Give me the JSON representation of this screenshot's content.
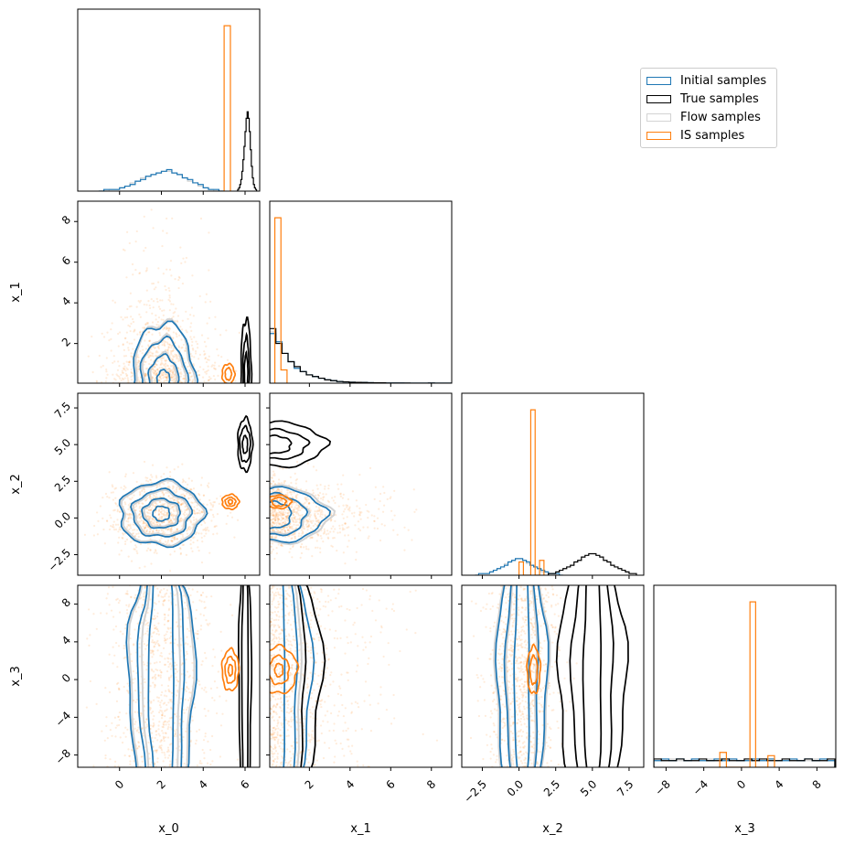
{
  "chart_data": {
    "type": "corner",
    "variables": [
      "x_0",
      "x_1",
      "x_2",
      "x_3"
    ],
    "ranges": {
      "x_0": [
        -2.0,
        6.7
      ],
      "x_1": [
        0.05,
        9.0
      ],
      "x_2": [
        -3.9,
        8.5
      ],
      "x_3": [
        -9.3,
        10.0
      ]
    },
    "ticks": {
      "x_0": {
        "values": [
          0,
          2,
          4,
          6
        ],
        "labels": [
          "0",
          "2",
          "4",
          "6"
        ]
      },
      "x_1": {
        "values": [
          2,
          4,
          6,
          8
        ],
        "labels": [
          "2",
          "4",
          "6",
          "8"
        ]
      },
      "x_2": {
        "values": [
          -2.5,
          0,
          2.5,
          5,
          7.5
        ],
        "labels": [
          "−2.5",
          "0.0",
          "2.5",
          "5.0",
          "7.5"
        ]
      },
      "x_3": {
        "values": [
          -8,
          -4,
          0,
          4,
          8
        ],
        "labels": [
          "−8",
          "−4",
          "0",
          "4",
          "8"
        ]
      }
    },
    "series": [
      {
        "name": "Initial samples",
        "key": "initial",
        "color": "#1f77b4"
      },
      {
        "name": "True samples",
        "key": "true",
        "color": "#000000"
      },
      {
        "name": "Flow samples",
        "key": "flow",
        "color": "#d3d3d3"
      },
      {
        "name": "IS samples",
        "key": "is",
        "color": "#ff7f0e"
      }
    ],
    "legend_placement": "upper-right",
    "histograms": {
      "x_0": {
        "ylim": [
          0,
          1.1
        ],
        "initial": {
          "start": -1,
          "width": 0.25,
          "counts": [
            0.0,
            0.01,
            0.01,
            0.01,
            0.02,
            0.03,
            0.04,
            0.06,
            0.07,
            0.09,
            0.1,
            0.11,
            0.12,
            0.13,
            0.11,
            0.1,
            0.08,
            0.07,
            0.05,
            0.04,
            0.02,
            0.01,
            0.01,
            0.0
          ]
        },
        "flow": {
          "start": -1,
          "width": 0.25,
          "counts": [
            0.0,
            0.0,
            0.01,
            0.01,
            0.02,
            0.03,
            0.05,
            0.06,
            0.08,
            0.09,
            0.1,
            0.11,
            0.12,
            0.12,
            0.11,
            0.1,
            0.08,
            0.06,
            0.05,
            0.03,
            0.02,
            0.01,
            0.0,
            0.0
          ]
        },
        "true": {
          "start": 5.6,
          "width": 0.05,
          "counts": [
            0,
            0.01,
            0.02,
            0.04,
            0.07,
            0.12,
            0.19,
            0.27,
            0.36,
            0.44,
            0.48,
            0.44,
            0.36,
            0.25,
            0.15,
            0.08,
            0.04,
            0.02,
            0.01,
            0
          ]
        },
        "is": {
          "edges": [
            5.0,
            5.3
          ],
          "counts": [
            1.0
          ]
        }
      },
      "x_1": {
        "ylim": [
          0,
          1.1
        ],
        "initial": {
          "start": 0.05,
          "width": 0.3,
          "counts": [
            0.3,
            0.25,
            0.18,
            0.13,
            0.09,
            0.07,
            0.05,
            0.04,
            0.03,
            0.02,
            0.015,
            0.01,
            0.008,
            0.006,
            0.005,
            0.004,
            0.003,
            0.002,
            0.002,
            0.001,
            0.001,
            0.001,
            0.0,
            0.0,
            0.0,
            0.0,
            0.001,
            0,
            0,
            0
          ]
        },
        "flow": {
          "start": 0.05,
          "width": 0.3,
          "counts": [
            0.31,
            0.24,
            0.18,
            0.13,
            0.1,
            0.07,
            0.05,
            0.04,
            0.03,
            0.02,
            0.015,
            0.01,
            0.008,
            0.006,
            0.005,
            0.004,
            0.003,
            0.002,
            0.002,
            0.001,
            0.001,
            0.0,
            0.0,
            0.0,
            0.0,
            0.0,
            0.0,
            0,
            0,
            0
          ]
        },
        "true": {
          "start": 0.05,
          "width": 0.3,
          "counts": [
            0.33,
            0.24,
            0.18,
            0.13,
            0.1,
            0.07,
            0.05,
            0.04,
            0.03,
            0.02,
            0.015,
            0.01,
            0.008,
            0.006,
            0.005,
            0.004,
            0.003,
            0.002,
            0.002,
            0.001,
            0.001,
            0.001,
            0.001,
            0.0,
            0.0,
            0.0,
            0.001,
            0,
            0,
            0
          ]
        },
        "is": {
          "edges": [
            0.3,
            0.6,
            0.9
          ],
          "counts": [
            1.0,
            0.08
          ]
        }
      },
      "x_2": {
        "ylim": [
          0,
          1.1
        ],
        "initial": {
          "start": -3,
          "width": 0.25,
          "counts": [
            0.0,
            0.01,
            0.01,
            0.01,
            0.02,
            0.03,
            0.04,
            0.05,
            0.06,
            0.08,
            0.09,
            0.1,
            0.1,
            0.09,
            0.08,
            0.06,
            0.05,
            0.04,
            0.03,
            0.02,
            0.01,
            0.01,
            0.01,
            0.0
          ]
        },
        "flow": {
          "start": -3,
          "width": 0.25,
          "counts": [
            0.0,
            0.0,
            0.01,
            0.01,
            0.02,
            0.03,
            0.04,
            0.05,
            0.07,
            0.08,
            0.09,
            0.1,
            0.1,
            0.09,
            0.07,
            0.06,
            0.05,
            0.04,
            0.02,
            0.02,
            0.01,
            0.01,
            0.0,
            0.0
          ]
        },
        "true": {
          "start": 2,
          "width": 0.25,
          "counts": [
            0.01,
            0.01,
            0.02,
            0.03,
            0.04,
            0.05,
            0.06,
            0.08,
            0.09,
            0.11,
            0.12,
            0.13,
            0.13,
            0.12,
            0.11,
            0.09,
            0.08,
            0.06,
            0.05,
            0.04,
            0.03,
            0.02,
            0.01,
            0.01
          ]
        },
        "is": {
          "edges": [
            0.0,
            0.3,
            0.8,
            1.1,
            1.4,
            1.7
          ],
          "counts": [
            0.08,
            0,
            1.0,
            0,
            0.09
          ]
        }
      },
      "x_3": {
        "ylim": [
          0,
          1.1
        ],
        "initial": {
          "start": -9.3,
          "width": 0.8,
          "counts": [
            0.04,
            0.05,
            0.04,
            0.05,
            0.04,
            0.05,
            0.04,
            0.04,
            0.05,
            0.04,
            0.05,
            0.04,
            0.04,
            0.05,
            0.04,
            0.05,
            0.04,
            0.04,
            0.05,
            0.04,
            0.05,
            0.04,
            0.05,
            0.04
          ]
        },
        "flow": {
          "start": -9.3,
          "width": 0.8,
          "counts": [
            0.04,
            0.04,
            0.05,
            0.04,
            0.04,
            0.05,
            0.04,
            0.05,
            0.04,
            0.04,
            0.05,
            0.04,
            0.05,
            0.04,
            0.04,
            0.05,
            0.04,
            0.05,
            0.04,
            0.04,
            0.04,
            0.05,
            0.04,
            0.04
          ]
        },
        "true": {
          "start": -9.3,
          "width": 0.8,
          "counts": [
            0.05,
            0.04,
            0.04,
            0.05,
            0.04,
            0.04,
            0.05,
            0.04,
            0.04,
            0.05,
            0.04,
            0.04,
            0.05,
            0.04,
            0.05,
            0.04,
            0.04,
            0.05,
            0.04,
            0.04,
            0.05,
            0.04,
            0.04,
            0.05
          ]
        },
        "is": {
          "edges": [
            -2.3,
            -1.6,
            0.9,
            1.5,
            2.8,
            3.5
          ],
          "counts": [
            0.09,
            0,
            1.0,
            0,
            0.07
          ]
        }
      }
    },
    "contours": [
      {
        "x": "x_0",
        "y": "x_1",
        "initial": {
          "center": [
            2.1,
            0.2
          ],
          "radii": [
            [
              1.5,
              2.8
            ],
            [
              1.1,
              2.0
            ],
            [
              0.7,
              1.2
            ],
            [
              0.3,
              0.5
            ]
          ]
        },
        "flow": {
          "center": [
            2.1,
            0.2
          ],
          "radii": [
            [
              1.4,
              2.9
            ],
            [
              1.0,
              2.1
            ],
            [
              0.6,
              1.3
            ]
          ]
        },
        "true": {
          "center": [
            6.05,
            0.5
          ],
          "radii": [
            [
              0.25,
              2.7
            ],
            [
              0.15,
              1.8
            ],
            [
              0.08,
              1.0
            ]
          ]
        },
        "is": {
          "center": [
            5.2,
            0.5
          ],
          "radii": [
            [
              0.3,
              0.5
            ],
            [
              0.15,
              0.3
            ]
          ]
        }
      },
      {
        "x": "x_0",
        "y": "x_2",
        "initial": {
          "center": [
            2.0,
            0.3
          ],
          "radii": [
            [
              2.0,
              2.2
            ],
            [
              1.4,
              1.6
            ],
            [
              0.9,
              1.0
            ],
            [
              0.4,
              0.5
            ]
          ]
        },
        "flow": {
          "center": [
            2.0,
            0.3
          ],
          "radii": [
            [
              1.9,
              2.1
            ],
            [
              1.3,
              1.5
            ],
            [
              0.8,
              0.9
            ]
          ]
        },
        "true": {
          "center": [
            6.0,
            5.0
          ],
          "radii": [
            [
              0.35,
              1.8
            ],
            [
              0.25,
              1.2
            ],
            [
              0.12,
              0.6
            ]
          ]
        },
        "is": {
          "center": [
            5.3,
            1.1
          ],
          "radii": [
            [
              0.4,
              0.5
            ],
            [
              0.25,
              0.3
            ],
            [
              0.1,
              0.15
            ]
          ]
        }
      },
      {
        "x": "x_1",
        "y": "x_2",
        "initial": {
          "center": [
            0.3,
            0.2
          ],
          "radii": [
            [
              2.5,
              1.8
            ],
            [
              1.5,
              1.4
            ],
            [
              0.8,
              0.9
            ]
          ]
        },
        "flow": {
          "center": [
            0.3,
            0.2
          ],
          "radii": [
            [
              2.7,
              1.9
            ],
            [
              1.6,
              1.3
            ]
          ]
        },
        "true": {
          "center": [
            0.3,
            5.0
          ],
          "radii": [
            [
              2.5,
              1.5
            ],
            [
              1.6,
              1.0
            ],
            [
              0.8,
              0.6
            ]
          ]
        },
        "is": {
          "center": [
            0.5,
            1.1
          ],
          "radii": [
            [
              0.6,
              0.45
            ],
            [
              0.35,
              0.3
            ]
          ]
        }
      },
      {
        "x": "x_0",
        "y": "x_3",
        "initial": {
          "center": [
            2.0,
            0
          ],
          "radii": [
            [
              1.6,
              14
            ],
            [
              1.1,
              14
            ],
            [
              0.6,
              14
            ]
          ]
        },
        "flow": {
          "center": [
            2.0,
            0
          ],
          "radii": [
            [
              1.5,
              14
            ],
            [
              0.9,
              14
            ]
          ]
        },
        "true": {
          "center": [
            6.0,
            0
          ],
          "radii": [
            [
              0.3,
              14
            ],
            [
              0.15,
              14
            ]
          ]
        },
        "is": {
          "center": [
            5.3,
            1
          ],
          "radii": [
            [
              0.4,
              2.2
            ],
            [
              0.25,
              1.4
            ],
            [
              0.1,
              0.6
            ]
          ]
        }
      },
      {
        "x": "x_1",
        "y": "x_3",
        "initial": {
          "center": [
            0.3,
            0
          ],
          "radii": [
            [
              1.8,
              14
            ],
            [
              1.1,
              14
            ],
            [
              0.5,
              14
            ]
          ]
        },
        "flow": {
          "center": [
            0.3,
            0
          ],
          "radii": [
            [
              2.3,
              14
            ],
            [
              1.3,
              14
            ]
          ]
        },
        "true": {
          "center": [
            0.3,
            0
          ],
          "radii": [
            [
              2.3,
              14
            ],
            [
              1.5,
              14
            ]
          ]
        },
        "is": {
          "center": [
            0.5,
            1
          ],
          "radii": [
            [
              0.9,
              2.5
            ],
            [
              0.5,
              1.5
            ],
            [
              0.2,
              0.7
            ]
          ]
        }
      },
      {
        "x": "x_2",
        "y": "x_3",
        "initial": {
          "center": [
            0.2,
            0
          ],
          "radii": [
            [
              1.7,
              14
            ],
            [
              1.1,
              14
            ],
            [
              0.5,
              14
            ]
          ]
        },
        "flow": {
          "center": [
            0.2,
            0
          ],
          "radii": [
            [
              1.8,
              14
            ],
            [
              1.0,
              14
            ]
          ]
        },
        "true": {
          "center": [
            5.0,
            0
          ],
          "radii": [
            [
              2.3,
              14
            ],
            [
              1.4,
              14
            ],
            [
              0.6,
              14
            ]
          ]
        },
        "is": {
          "center": [
            1.0,
            1
          ],
          "radii": [
            [
              0.45,
              2.5
            ],
            [
              0.25,
              1.5
            ]
          ]
        }
      }
    ]
  }
}
